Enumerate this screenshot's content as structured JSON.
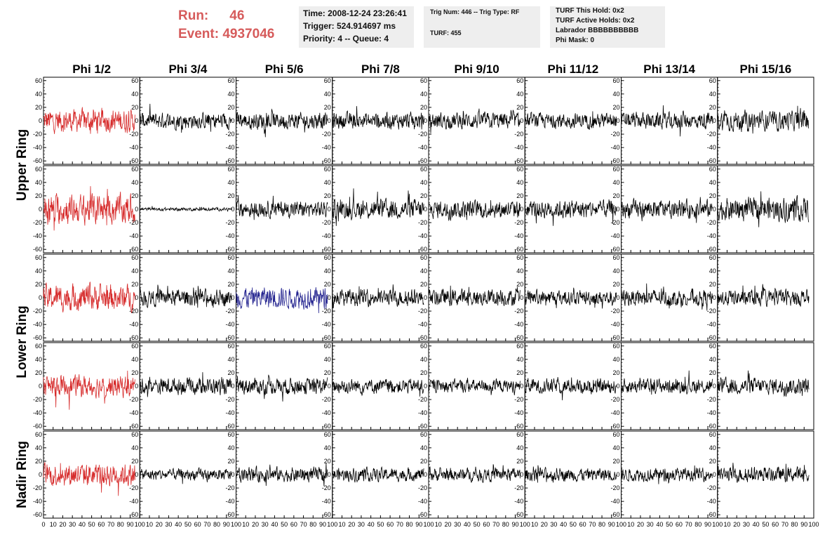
{
  "header": {
    "run_label": "Run:",
    "run_value": "46",
    "event_label": "Event:",
    "event_value": "4937046",
    "time": "Time: 2008-12-24 23:26:41",
    "trigger": "Trigger: 524.914697 ms",
    "priority": "Priority: 4 -- Queue: 4",
    "trig_num": "Trig Num: 446 -- Trig Type: RF",
    "turf": "TURF: 455",
    "turf_hold": "TURF This Hold: 0x2",
    "turf_active": "TURF Active Holds: 0x2",
    "labrador": "Labrador BBBBBBBBBB",
    "phi_mask": "Phi Mask: 0"
  },
  "colors": {
    "highlight_red": "#d62a2a",
    "highlight_blue": "#23238f",
    "trace_default": "#000000",
    "info_box": "#eeeeee"
  },
  "chart_data": {
    "type": "line",
    "columns": [
      "Phi 1/2",
      "Phi 3/4",
      "Phi 5/6",
      "Phi 7/8",
      "Phi 9/10",
      "Phi 11/12",
      "Phi 13/14",
      "Phi 15/16"
    ],
    "ring_labels": [
      {
        "label": "Upper Ring",
        "rows": [
          0,
          1
        ]
      },
      {
        "label": "Lower Ring",
        "rows": [
          2,
          3
        ]
      },
      {
        "label": "Nadir Ring",
        "rows": [
          4
        ]
      }
    ],
    "ylim": [
      -65,
      65
    ],
    "xlim": [
      0,
      100
    ],
    "yticks": [
      -60,
      -40,
      -20,
      0,
      20,
      40,
      60
    ],
    "ytick_labels": [
      "-60",
      "-40",
      "-20",
      "0",
      "20",
      "40",
      "60"
    ],
    "xticks": [
      0,
      10,
      20,
      30,
      40,
      50,
      60,
      70,
      80,
      90,
      100
    ],
    "xtick_labels": [
      "0",
      "10",
      "20",
      "30",
      "40",
      "50",
      "60",
      "70",
      "80",
      "90",
      "100"
    ],
    "samples_per_trace": 260,
    "amplitude": [
      [
        14,
        10,
        10,
        10,
        10,
        9,
        10,
        12
      ],
      [
        18,
        2,
        10,
        12,
        11,
        11,
        11,
        14
      ],
      [
        16,
        10,
        13,
        10,
        10,
        9,
        10,
        10
      ],
      [
        13,
        10,
        10,
        9,
        8,
        9,
        9,
        10
      ],
      [
        14,
        7,
        9,
        8,
        8,
        8,
        8,
        9
      ]
    ],
    "trace_color": [
      [
        "red",
        "black",
        "black",
        "black",
        "black",
        "black",
        "black",
        "black"
      ],
      [
        "red",
        "black",
        "black",
        "black",
        "black",
        "black",
        "black",
        "black"
      ],
      [
        "red",
        "black",
        "blue",
        "black",
        "black",
        "black",
        "black",
        "black"
      ],
      [
        "red",
        "black",
        "black",
        "black",
        "black",
        "black",
        "black",
        "black"
      ],
      [
        "red",
        "black",
        "black",
        "black",
        "black",
        "black",
        "black",
        "black"
      ]
    ]
  }
}
